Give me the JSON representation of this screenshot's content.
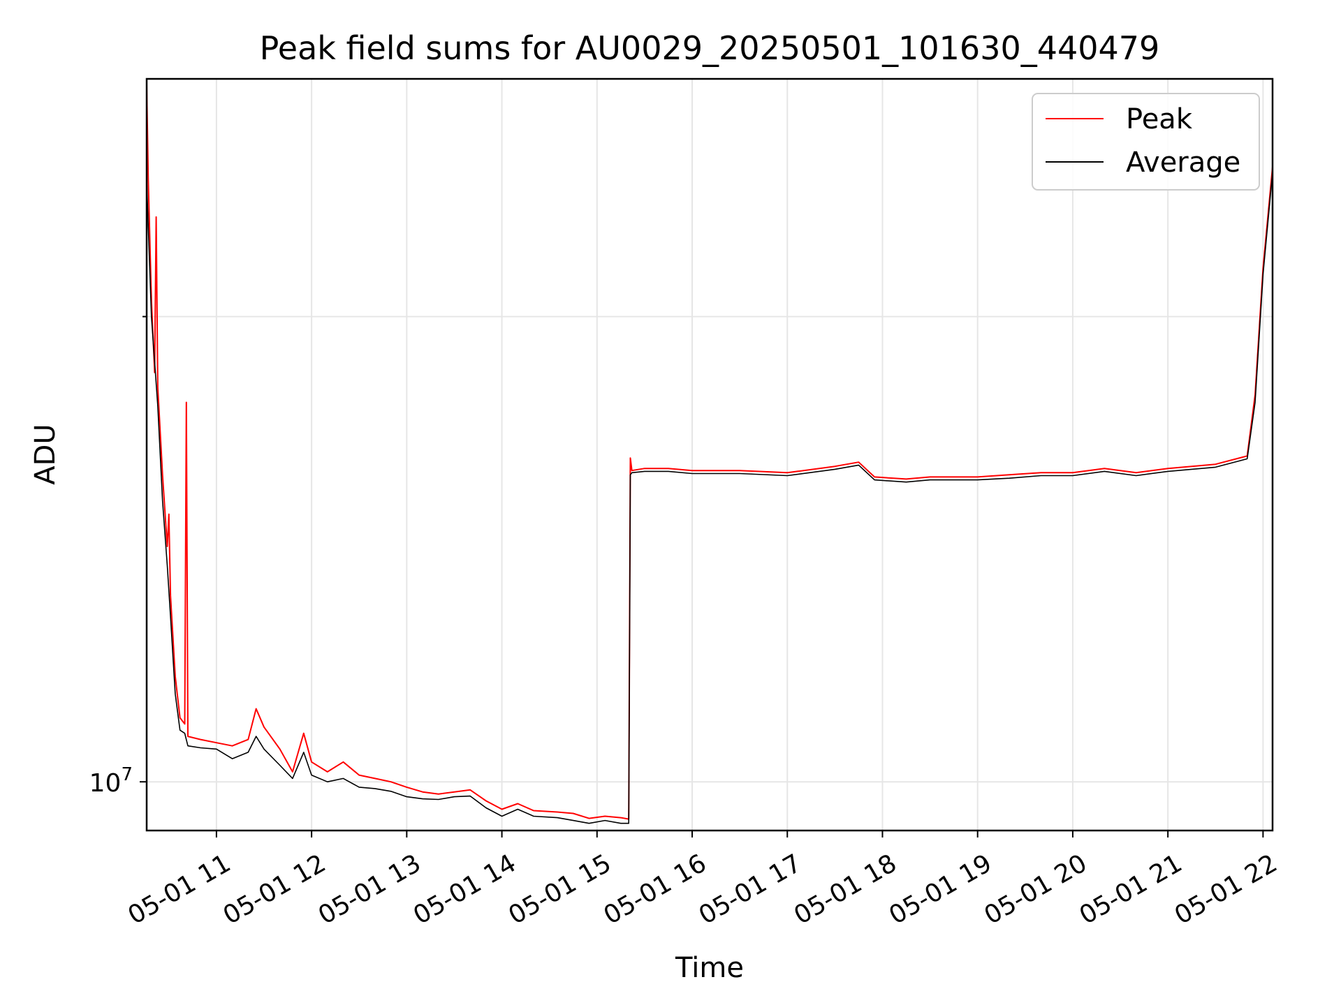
{
  "chart_data": {
    "type": "line",
    "title": "Peak field sums for AU0029_20250501_101630_440479",
    "xlabel": "Time",
    "ylabel": "ADU",
    "y_scale": "log",
    "y_tick_labels": [
      "10^7"
    ],
    "x_range": [
      "2025-05-01 10:16",
      "2025-05-01 22:06"
    ],
    "x_tick_labels": [
      "05-01 11",
      "05-01 12",
      "05-01 13",
      "05-01 14",
      "05-01 15",
      "05-01 16",
      "05-01 17",
      "05-01 18",
      "05-01 19",
      "05-01 20",
      "05-01 21",
      "05-01 22"
    ],
    "ylim": [
      9300000,
      28500000
    ],
    "grid": true,
    "legend": "upper right",
    "series": [
      {
        "name": "Peak",
        "color": "#ff0000",
        "points": [
          [
            "2025-05-01 10:16",
            28300000
          ],
          [
            "2025-05-01 10:17",
            24500000
          ],
          [
            "2025-05-01 10:19",
            20500000
          ],
          [
            "2025-05-01 10:21",
            18400000
          ],
          [
            "2025-05-01 10:22",
            23200000
          ],
          [
            "2025-05-01 10:23",
            18000000
          ],
          [
            "2025-05-01 10:26",
            15800000
          ],
          [
            "2025-05-01 10:29",
            14200000
          ],
          [
            "2025-05-01 10:30",
            14900000
          ],
          [
            "2025-05-01 10:31",
            13200000
          ],
          [
            "2025-05-01 10:34",
            11700000
          ],
          [
            "2025-05-01 10:37",
            11000000
          ],
          [
            "2025-05-01 10:40",
            10900000
          ],
          [
            "2025-05-01 10:41",
            17600000
          ],
          [
            "2025-05-01 10:42",
            10700000
          ],
          [
            "2025-05-01 10:50",
            10650000
          ],
          [
            "2025-05-01 11:00",
            10600000
          ],
          [
            "2025-05-01 11:10",
            10550000
          ],
          [
            "2025-05-01 11:20",
            10650000
          ],
          [
            "2025-05-01 11:25",
            11150000
          ],
          [
            "2025-05-01 11:30",
            10850000
          ],
          [
            "2025-05-01 11:40",
            10500000
          ],
          [
            "2025-05-01 11:48",
            10150000
          ],
          [
            "2025-05-01 11:55",
            10750000
          ],
          [
            "2025-05-01 12:00",
            10300000
          ],
          [
            "2025-05-01 12:10",
            10150000
          ],
          [
            "2025-05-01 12:20",
            10300000
          ],
          [
            "2025-05-01 12:30",
            10100000
          ],
          [
            "2025-05-01 12:40",
            10050000
          ],
          [
            "2025-05-01 12:50",
            10000000
          ],
          [
            "2025-05-01 13:00",
            9920000
          ],
          [
            "2025-05-01 13:10",
            9850000
          ],
          [
            "2025-05-01 13:20",
            9820000
          ],
          [
            "2025-05-01 13:30",
            9850000
          ],
          [
            "2025-05-01 13:40",
            9880000
          ],
          [
            "2025-05-01 13:50",
            9720000
          ],
          [
            "2025-05-01 14:00",
            9600000
          ],
          [
            "2025-05-01 14:10",
            9680000
          ],
          [
            "2025-05-01 14:20",
            9580000
          ],
          [
            "2025-05-01 14:35",
            9560000
          ],
          [
            "2025-05-01 14:45",
            9540000
          ],
          [
            "2025-05-01 14:55",
            9470000
          ],
          [
            "2025-05-01 15:05",
            9500000
          ],
          [
            "2025-05-01 15:15",
            9480000
          ],
          [
            "2025-05-01 15:20",
            9460000
          ],
          [
            "2025-05-01 15:21",
            16200000
          ],
          [
            "2025-05-01 15:22",
            15900000
          ],
          [
            "2025-05-01 15:30",
            15950000
          ],
          [
            "2025-05-01 15:45",
            15950000
          ],
          [
            "2025-05-01 16:00",
            15900000
          ],
          [
            "2025-05-01 16:30",
            15900000
          ],
          [
            "2025-05-01 17:00",
            15850000
          ],
          [
            "2025-05-01 17:30",
            16000000
          ],
          [
            "2025-05-01 17:45",
            16100000
          ],
          [
            "2025-05-01 17:55",
            15750000
          ],
          [
            "2025-05-01 18:15",
            15700000
          ],
          [
            "2025-05-01 18:30",
            15750000
          ],
          [
            "2025-05-01 19:00",
            15750000
          ],
          [
            "2025-05-01 19:20",
            15800000
          ],
          [
            "2025-05-01 19:40",
            15850000
          ],
          [
            "2025-05-01 20:00",
            15850000
          ],
          [
            "2025-05-01 20:20",
            15950000
          ],
          [
            "2025-05-01 20:40",
            15850000
          ],
          [
            "2025-05-01 21:00",
            15950000
          ],
          [
            "2025-05-01 21:30",
            16050000
          ],
          [
            "2025-05-01 21:50",
            16250000
          ],
          [
            "2025-05-01 21:55",
            17800000
          ],
          [
            "2025-05-01 22:00",
            21500000
          ],
          [
            "2025-05-01 22:06",
            25000000
          ]
        ]
      },
      {
        "name": "Average",
        "color": "#000000",
        "points": [
          [
            "2025-05-01 10:16",
            24500000
          ],
          [
            "2025-05-01 10:19",
            20000000
          ],
          [
            "2025-05-01 10:23",
            17500000
          ],
          [
            "2025-05-01 10:26",
            15200000
          ],
          [
            "2025-05-01 10:29",
            13800000
          ],
          [
            "2025-05-01 10:31",
            12800000
          ],
          [
            "2025-05-01 10:34",
            11400000
          ],
          [
            "2025-05-01 10:37",
            10800000
          ],
          [
            "2025-05-01 10:40",
            10750000
          ],
          [
            "2025-05-01 10:42",
            10550000
          ],
          [
            "2025-05-01 10:50",
            10520000
          ],
          [
            "2025-05-01 11:00",
            10500000
          ],
          [
            "2025-05-01 11:10",
            10350000
          ],
          [
            "2025-05-01 11:20",
            10450000
          ],
          [
            "2025-05-01 11:25",
            10700000
          ],
          [
            "2025-05-01 11:30",
            10500000
          ],
          [
            "2025-05-01 11:40",
            10250000
          ],
          [
            "2025-05-01 11:48",
            10050000
          ],
          [
            "2025-05-01 11:55",
            10450000
          ],
          [
            "2025-05-01 12:00",
            10100000
          ],
          [
            "2025-05-01 12:10",
            10000000
          ],
          [
            "2025-05-01 12:20",
            10050000
          ],
          [
            "2025-05-01 12:30",
            9920000
          ],
          [
            "2025-05-01 12:40",
            9900000
          ],
          [
            "2025-05-01 12:50",
            9860000
          ],
          [
            "2025-05-01 13:00",
            9780000
          ],
          [
            "2025-05-01 13:10",
            9750000
          ],
          [
            "2025-05-01 13:20",
            9740000
          ],
          [
            "2025-05-01 13:30",
            9780000
          ],
          [
            "2025-05-01 13:40",
            9790000
          ],
          [
            "2025-05-01 13:50",
            9620000
          ],
          [
            "2025-05-01 14:00",
            9500000
          ],
          [
            "2025-05-01 14:10",
            9600000
          ],
          [
            "2025-05-01 14:20",
            9500000
          ],
          [
            "2025-05-01 14:35",
            9480000
          ],
          [
            "2025-05-01 14:45",
            9440000
          ],
          [
            "2025-05-01 14:55",
            9400000
          ],
          [
            "2025-05-01 15:05",
            9440000
          ],
          [
            "2025-05-01 15:15",
            9400000
          ],
          [
            "2025-05-01 15:20",
            9400000
          ],
          [
            "2025-05-01 15:21",
            15800000
          ],
          [
            "2025-05-01 15:22",
            15850000
          ],
          [
            "2025-05-01 15:30",
            15880000
          ],
          [
            "2025-05-01 15:45",
            15880000
          ],
          [
            "2025-05-01 16:00",
            15830000
          ],
          [
            "2025-05-01 16:30",
            15830000
          ],
          [
            "2025-05-01 17:00",
            15780000
          ],
          [
            "2025-05-01 17:30",
            15930000
          ],
          [
            "2025-05-01 17:45",
            16030000
          ],
          [
            "2025-05-01 17:55",
            15680000
          ],
          [
            "2025-05-01 18:15",
            15630000
          ],
          [
            "2025-05-01 18:30",
            15680000
          ],
          [
            "2025-05-01 19:00",
            15680000
          ],
          [
            "2025-05-01 19:20",
            15720000
          ],
          [
            "2025-05-01 19:40",
            15780000
          ],
          [
            "2025-05-01 20:00",
            15780000
          ],
          [
            "2025-05-01 20:20",
            15880000
          ],
          [
            "2025-05-01 20:40",
            15780000
          ],
          [
            "2025-05-01 21:00",
            15880000
          ],
          [
            "2025-05-01 21:30",
            15980000
          ],
          [
            "2025-05-01 21:50",
            16180000
          ],
          [
            "2025-05-01 21:55",
            17600000
          ],
          [
            "2025-05-01 22:00",
            21300000
          ],
          [
            "2025-05-01 22:06",
            24800000
          ]
        ]
      }
    ]
  }
}
